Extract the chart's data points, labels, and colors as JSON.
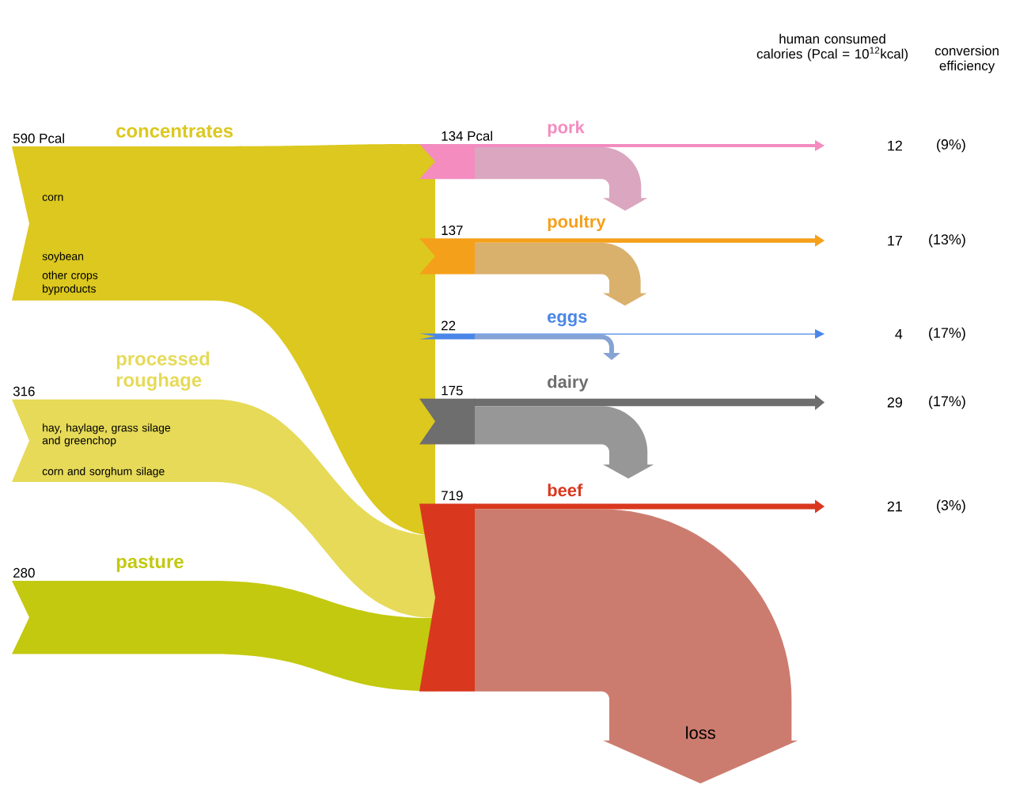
{
  "chart_data": [
    {
      "type": "other",
      "categories": [
        "concentrates",
        "processed roughage",
        "pasture"
      ],
      "values": [
        590,
        316,
        280
      ],
      "value_labels": [
        "590 Pcal",
        "316",
        "280"
      ],
      "colors": [
        "#dcc81e",
        "#e6da58",
        "#c3c90f"
      ],
      "annotations": [
        "corn",
        "soybean",
        "other crops",
        "byproducts",
        "hay, haylage, grass silage and greenchop",
        "corn and sorghum silage"
      ]
    },
    {
      "type": "other",
      "categories": [
        "pork",
        "poultry",
        "eggs",
        "dairy",
        "beef"
      ],
      "colors": [
        "#f48cc0",
        "#f5a01a",
        "#4a86e8",
        "#6e6e6e",
        "#d9381e"
      ],
      "series": [
        {
          "values": [
            134,
            137,
            22,
            175,
            719
          ],
          "value_labels": [
            "134 Pcal",
            "137",
            "22",
            "175",
            "719"
          ]
        },
        {
          "values": [
            12,
            17,
            4,
            29,
            21
          ],
          "value_labels": [
            "12",
            "17",
            "4",
            "29",
            "21"
          ]
        },
        {
          "values": [
            9,
            13,
            17,
            17,
            3
          ],
          "value_labels": [
            "(9%)",
            "(13%)",
            "(17%)",
            "(17%)",
            "(3%)"
          ]
        }
      ],
      "annotations": [
        "human consumed calories (Pcal = 10$^{12}$kcal)",
        "conversion efficiency",
        "loss"
      ]
    }
  ]
}
